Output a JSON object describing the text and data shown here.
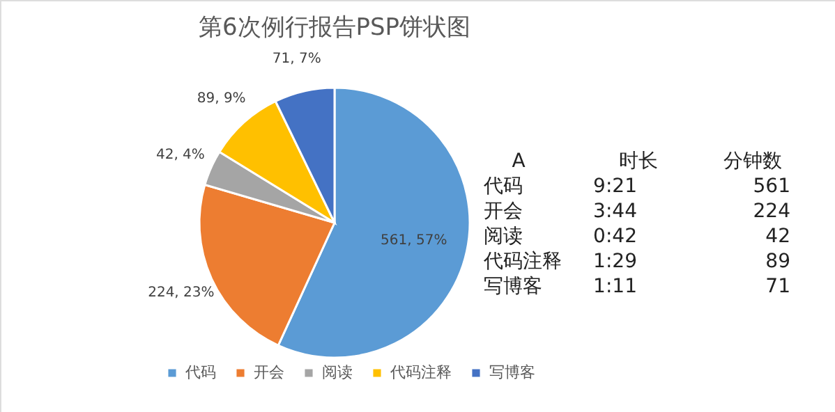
{
  "chart_data": [
    {
      "type": "pie",
      "title": "第6次例行报告PSP饼状图",
      "categories": [
        "代码",
        "开会",
        "阅读",
        "代码注释",
        "写博客"
      ],
      "values": [
        561,
        224,
        42,
        89,
        71
      ],
      "colors": [
        "#5b9bd5",
        "#ed7d31",
        "#a5a5a5",
        "#ffc000",
        "#4472c4"
      ],
      "value_labels": [
        "561, 57%",
        "224, 23%",
        "42, 4%",
        "89, 9%",
        "71, 7%"
      ],
      "legend": "bottom"
    },
    {
      "type": "other",
      "annotations": [
        "A",
        "时长",
        "分钟数",
        "代码",
        "9:21",
        "561",
        "开会",
        "3:44",
        "224",
        "阅读",
        "0:42",
        "42",
        "代码注释",
        "1:29",
        "89",
        "写博客",
        "1:11",
        "71"
      ]
    }
  ]
}
